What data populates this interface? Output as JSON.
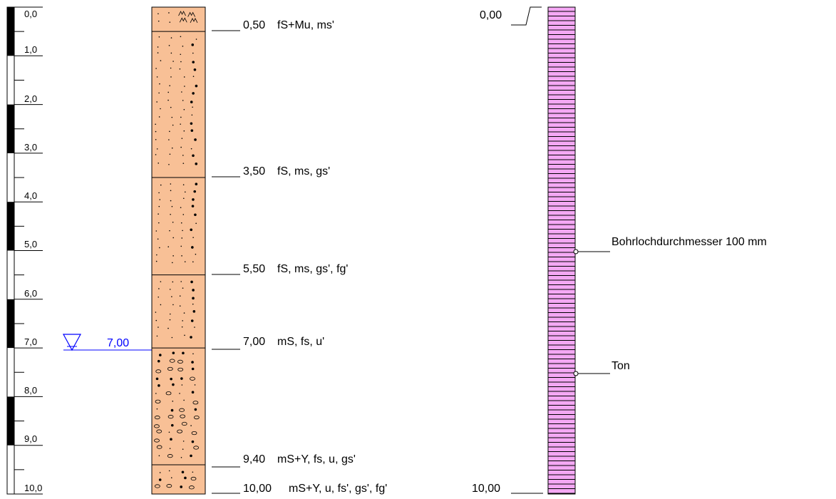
{
  "depth_scale": {
    "labels": [
      "0,0",
      "1,0",
      "2,0",
      "3,0",
      "4,0",
      "5,0",
      "6,0",
      "7,0",
      "8,0",
      "9,0",
      "10,0"
    ]
  },
  "groundwater": {
    "level": 7.0,
    "label": "7,00",
    "color": "#0000ff"
  },
  "borehole": {
    "fill_color": "#f8c096",
    "layers": [
      {
        "top": 0.0,
        "bottom": 0.5,
        "pattern": "fS+Mu"
      },
      {
        "top": 0.5,
        "bottom": 3.5,
        "pattern": "fS-ms-gs"
      },
      {
        "top": 3.5,
        "bottom": 5.5,
        "pattern": "fS-ms-gs"
      },
      {
        "top": 5.5,
        "bottom": 7.0,
        "pattern": "fS-ms-gs-fg"
      },
      {
        "top": 7.0,
        "bottom": 9.4,
        "pattern": "mS-fs-u"
      },
      {
        "top": 9.4,
        "bottom": 10.0,
        "pattern": "mS+Y-fs-u-gs"
      }
    ],
    "descriptions": [
      {
        "depth": 0.5,
        "depth_label": "0,50",
        "text": "fS+Mu, ms'"
      },
      {
        "depth": 3.5,
        "depth_label": "3,50",
        "text": "fS, ms, gs'"
      },
      {
        "depth": 5.5,
        "depth_label": "5,50",
        "text": "fS, ms, gs', fg'"
      },
      {
        "depth": 7.0,
        "depth_label": "7,00",
        "text": "mS, fs, u'"
      },
      {
        "depth": 9.4,
        "depth_label": "9,40",
        "text": "mS+Y, fs, u, gs'"
      },
      {
        "depth": 10.0,
        "depth_label": "10,00",
        "text": "mS+Y, u, fs', gs', fg'"
      }
    ]
  },
  "well": {
    "top_label": "0,00",
    "bottom_label": "10,00",
    "fill_color": "#f4a8f4",
    "annotations": [
      {
        "depth": 5.0,
        "text": "Bohrlochdurchmesser 100 mm"
      },
      {
        "depth": 7.55,
        "text": "Ton"
      }
    ]
  }
}
